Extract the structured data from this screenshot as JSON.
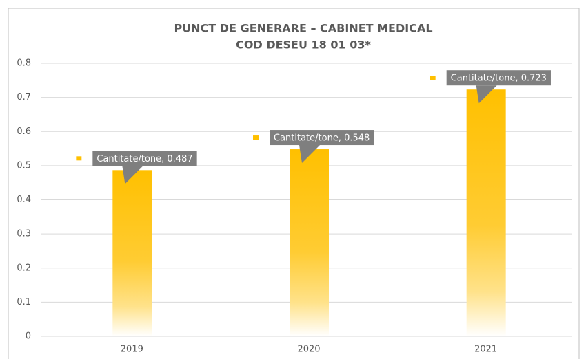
{
  "chart_data": {
    "type": "bar",
    "title": "PUNCT DE GENERARE – CABINET MEDICAL",
    "subtitle": "COD DESEU 18 01 03*",
    "categories": [
      "2019",
      "2020",
      "2021"
    ],
    "series": [
      {
        "name": "Cantitate/tone",
        "color": "#ffc000",
        "values": [
          0.487,
          0.548,
          0.723
        ],
        "value_labels": [
          "Cantitate/tone, 0.487",
          "Cantitate/tone, 0.548",
          "Cantitate/tone, 0.723"
        ]
      }
    ],
    "ylim": [
      0,
      0.8
    ],
    "yticks": [
      0,
      0.1,
      0.2,
      0.3,
      0.4,
      0.5,
      0.6,
      0.7,
      0.8
    ],
    "grid": true
  }
}
